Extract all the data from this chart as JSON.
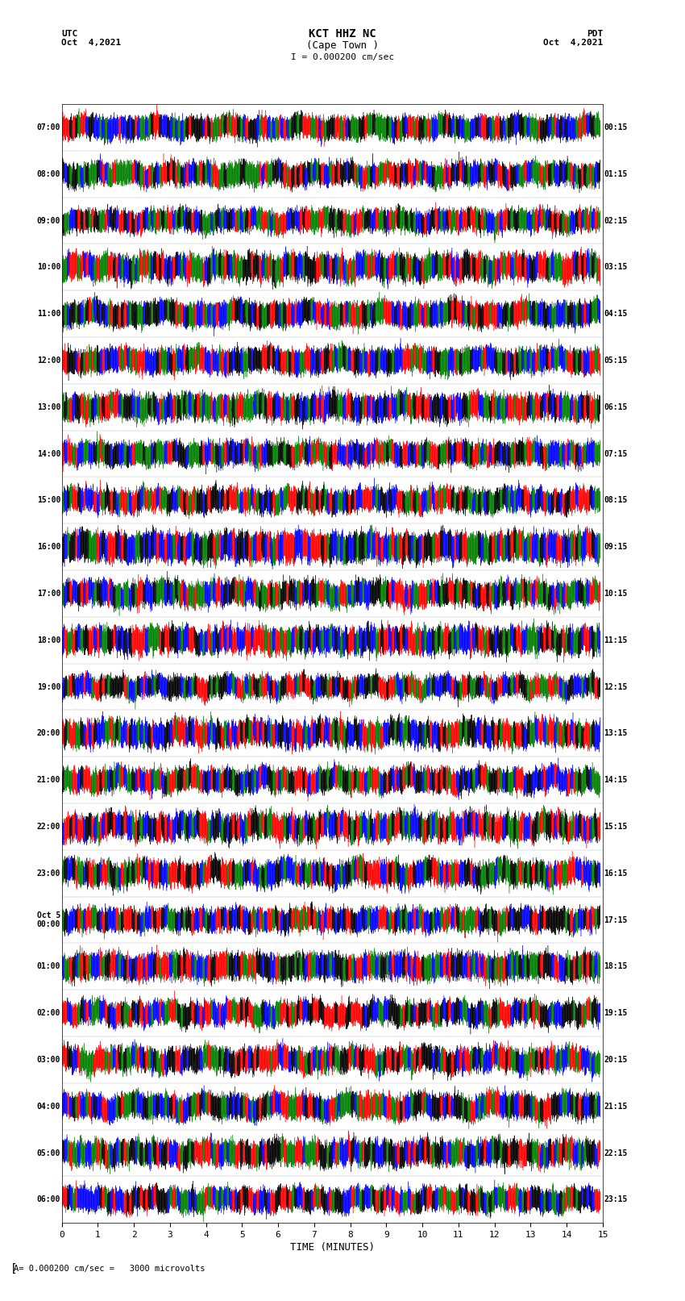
{
  "title_line1": "KCT HHZ NC",
  "title_line2": "(Cape Town )",
  "scale_label": "I = 0.000200 cm/sec",
  "utc_label": "UTC",
  "utc_date": "Oct  4,2021",
  "pdt_label": "PDT",
  "pdt_date": "Oct  4,2021",
  "bottom_label": "= 0.000200 cm/sec =   3000 microvolts",
  "xlabel": "TIME (MINUTES)",
  "left_times": [
    "07:00",
    "08:00",
    "09:00",
    "10:00",
    "11:00",
    "12:00",
    "13:00",
    "14:00",
    "15:00",
    "16:00",
    "17:00",
    "18:00",
    "19:00",
    "20:00",
    "21:00",
    "22:00",
    "23:00",
    "Oct 5\n00:00",
    "01:00",
    "02:00",
    "03:00",
    "04:00",
    "05:00",
    "06:00"
  ],
  "right_times": [
    "00:15",
    "01:15",
    "02:15",
    "03:15",
    "04:15",
    "05:15",
    "06:15",
    "07:15",
    "08:15",
    "09:15",
    "10:15",
    "11:15",
    "12:15",
    "13:15",
    "14:15",
    "15:15",
    "16:15",
    "17:15",
    "18:15",
    "19:15",
    "20:15",
    "21:15",
    "22:15",
    "23:15"
  ],
  "num_traces": 24,
  "trace_duration_minutes": 15,
  "sample_rate": 100,
  "colors": [
    "red",
    "blue",
    "green",
    "black"
  ],
  "bg_color": "white",
  "fig_width": 8.5,
  "fig_height": 16.13,
  "xlim": [
    0,
    15
  ],
  "xticks": [
    0,
    1,
    2,
    3,
    4,
    5,
    6,
    7,
    8,
    9,
    10,
    11,
    12,
    13,
    14,
    15
  ]
}
